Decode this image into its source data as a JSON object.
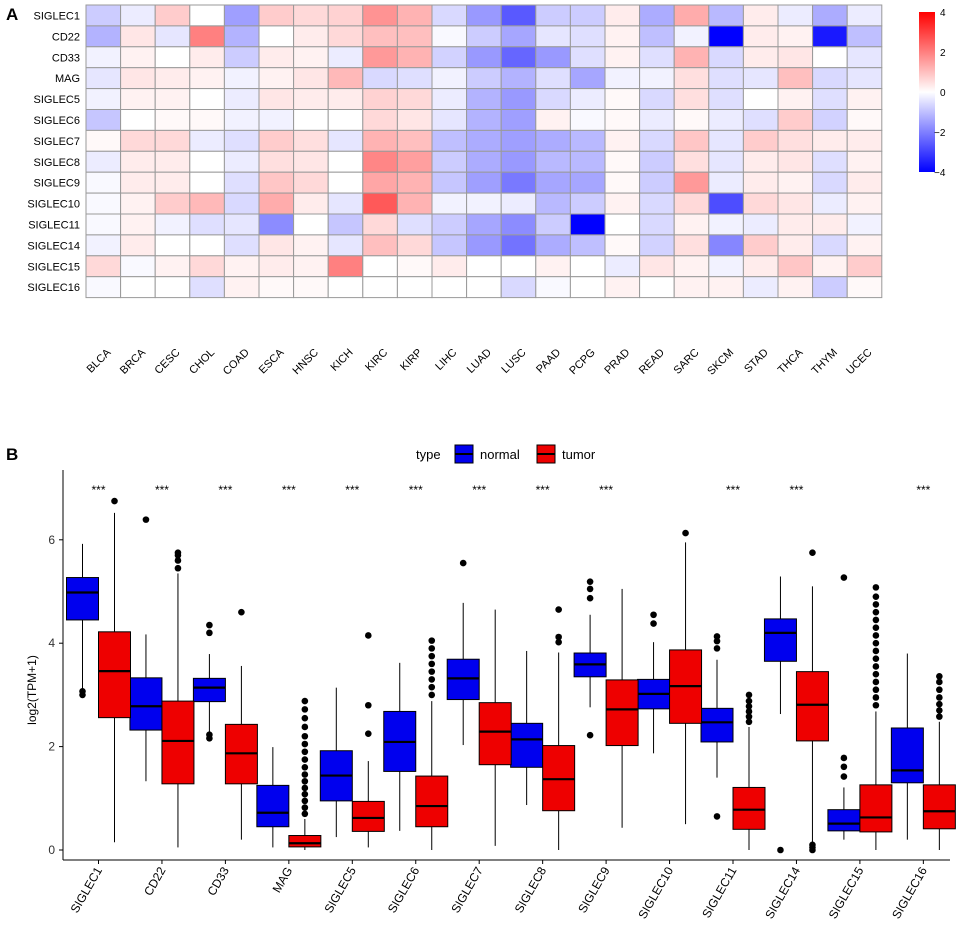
{
  "panel_a": {
    "label": "A",
    "legend": {
      "ticks": [
        "4",
        "2",
        "0",
        "−2",
        "−4"
      ],
      "colors": {
        "low": "#0000ff",
        "mid": "#ffffff",
        "high": "#ff0000"
      }
    },
    "chart_data": {
      "type": "heatmap",
      "rows": [
        "SIGLEC1",
        "CD22",
        "CD33",
        "MAG",
        "SIGLEC5",
        "SIGLEC6",
        "SIGLEC7",
        "SIGLEC8",
        "SIGLEC9",
        "SIGLEC10",
        "SIGLEC11",
        "SIGLEC14",
        "SIGLEC15",
        "SIGLEC16"
      ],
      "columns": [
        "BLCA",
        "BRCA",
        "CESC",
        "CHOL",
        "COAD",
        "ESCA",
        "HNSC",
        "KICH",
        "KIRC",
        "KIRP",
        "LIHC",
        "LUAD",
        "LUSC",
        "PAAD",
        "PCPG",
        "PRAD",
        "READ",
        "SARC",
        "SKCM",
        "STAD",
        "THCA",
        "THYM",
        "UCEC"
      ],
      "values": [
        [
          -0.8,
          -0.3,
          0.8,
          0.0,
          -1.5,
          0.8,
          0.6,
          0.7,
          1.7,
          1.2,
          -0.6,
          -1.6,
          -2.6,
          -0.8,
          -0.8,
          0.3,
          -1.3,
          1.3,
          -1.1,
          0.3,
          -0.3,
          -1.3,
          -0.3
        ],
        [
          -1.2,
          0.4,
          -0.4,
          2.0,
          -1.2,
          0.0,
          0.3,
          0.6,
          1.0,
          1.0,
          -0.1,
          -0.8,
          -1.4,
          -0.4,
          -0.5,
          0.2,
          -1.0,
          -0.2,
          -4.0,
          0.3,
          0.2,
          -3.6,
          -1.0
        ],
        [
          -0.2,
          0.2,
          0.0,
          0.3,
          -0.8,
          0.3,
          0.2,
          -0.3,
          1.6,
          1.2,
          -0.7,
          -1.6,
          -2.4,
          -1.6,
          -0.5,
          0.2,
          -0.5,
          1.2,
          -0.6,
          0.3,
          0.4,
          0.0,
          -0.4
        ],
        [
          -0.4,
          0.4,
          0.3,
          0.2,
          -0.2,
          0.2,
          0.4,
          1.1,
          -0.6,
          -0.5,
          -0.2,
          -0.8,
          -1.2,
          -0.5,
          -1.4,
          -0.2,
          -0.2,
          0.5,
          -0.5,
          -0.4,
          1.0,
          -0.6,
          -0.4
        ],
        [
          -0.2,
          0.2,
          0.2,
          0.0,
          -0.3,
          0.4,
          0.3,
          0.3,
          0.7,
          0.6,
          -0.3,
          -1.2,
          -1.6,
          -0.6,
          -0.3,
          0.1,
          -0.6,
          0.5,
          -0.5,
          0.0,
          0.2,
          -0.5,
          0.2
        ],
        [
          -0.9,
          0.0,
          0.1,
          0.1,
          -0.2,
          -0.2,
          0.0,
          0.0,
          0.6,
          0.4,
          -0.4,
          -1.2,
          -1.5,
          0.2,
          -0.1,
          0.1,
          -0.3,
          0.1,
          -0.3,
          -0.5,
          0.8,
          -0.7,
          0.1
        ],
        [
          0.1,
          0.6,
          0.6,
          -0.3,
          -0.5,
          0.8,
          0.5,
          -0.4,
          1.2,
          1.0,
          -1.0,
          -1.3,
          -1.5,
          -1.3,
          -1.1,
          0.2,
          -0.6,
          0.9,
          -0.4,
          0.8,
          0.5,
          0.3,
          0.3
        ],
        [
          -0.3,
          0.3,
          0.3,
          0.0,
          -0.3,
          0.5,
          0.4,
          0.0,
          1.9,
          1.5,
          -0.8,
          -1.3,
          -1.6,
          -1.1,
          -1.1,
          0.1,
          -0.8,
          0.5,
          -0.4,
          0.3,
          0.4,
          -0.5,
          0.2
        ],
        [
          -0.1,
          0.3,
          0.3,
          0.0,
          -0.5,
          0.9,
          0.6,
          0.0,
          1.4,
          1.2,
          -0.9,
          -1.5,
          -2.1,
          -1.4,
          -1.4,
          0.1,
          -0.8,
          1.6,
          -0.3,
          0.3,
          0.2,
          -0.6,
          0.3
        ],
        [
          -0.1,
          0.2,
          0.8,
          1.1,
          -0.6,
          1.3,
          0.3,
          -0.4,
          2.6,
          1.2,
          -0.2,
          -0.2,
          -0.3,
          -1.1,
          -0.8,
          0.2,
          -0.6,
          0.6,
          -2.8,
          0.6,
          0.4,
          -0.3,
          0.2
        ],
        [
          -0.1,
          0.2,
          -0.2,
          -0.5,
          -0.4,
          -1.8,
          0.0,
          -0.9,
          0.6,
          -0.5,
          -0.8,
          -1.4,
          -1.8,
          -0.8,
          -4.0,
          0.0,
          -0.6,
          0.2,
          -0.2,
          -0.3,
          0.3,
          0.3,
          -0.2
        ],
        [
          -0.2,
          0.3,
          0.0,
          0.0,
          -0.5,
          0.4,
          0.2,
          -0.4,
          1.0,
          0.6,
          -0.9,
          -1.6,
          -2.2,
          -1.3,
          -1.0,
          0.1,
          -0.7,
          0.5,
          -1.9,
          0.8,
          0.3,
          -0.6,
          0.2
        ],
        [
          0.6,
          -0.1,
          0.2,
          0.6,
          0.2,
          0.3,
          0.2,
          2.0,
          0.0,
          0.1,
          0.3,
          0.0,
          0.0,
          0.2,
          0.0,
          -0.3,
          0.4,
          0.2,
          -0.2,
          0.3,
          0.9,
          0.2,
          0.8
        ],
        [
          -0.1,
          0.0,
          0.0,
          -0.5,
          0.2,
          0.1,
          0.1,
          0.0,
          0.0,
          0.0,
          0.0,
          0.0,
          -0.6,
          -0.1,
          0.0,
          0.2,
          0.0,
          0.2,
          0.2,
          -0.3,
          0.2,
          -0.8,
          0.1
        ]
      ],
      "scale_range": [
        -4,
        4
      ]
    }
  },
  "panel_b": {
    "label": "B",
    "legend": {
      "title": "type",
      "items": [
        {
          "name": "normal",
          "color": "#0000ee"
        },
        {
          "name": "tumor",
          "color": "#ee0000"
        }
      ]
    },
    "chart_data": {
      "type": "boxplot",
      "ylabel": "log2(TPM+1)",
      "ylim": [
        -0.2,
        7.2
      ],
      "yticks": [
        "0",
        "2",
        "4",
        "6"
      ],
      "categories": [
        "SIGLEC1",
        "CD22",
        "CD33",
        "MAG",
        "SIGLEC5",
        "SIGLEC6",
        "SIGLEC7",
        "SIGLEC8",
        "SIGLEC9",
        "SIGLEC10",
        "SIGLEC11",
        "SIGLEC14",
        "SIGLEC15",
        "SIGLEC16"
      ],
      "significance": [
        "***",
        "***",
        "***",
        "***",
        "***",
        "***",
        "***",
        "***",
        "***",
        "",
        "***",
        "***",
        "",
        "***"
      ],
      "series": [
        {
          "name": "normal",
          "boxes": [
            {
              "min": 3.1,
              "q1": 4.45,
              "median": 4.98,
              "q3": 5.27,
              "max": 5.92,
              "outliers": [
                3.0,
                3.07
              ]
            },
            {
              "min": 1.33,
              "q1": 2.32,
              "median": 2.78,
              "q3": 3.33,
              "max": 4.17,
              "outliers": [
                6.39
              ]
            },
            {
              "min": 2.28,
              "q1": 2.87,
              "median": 3.14,
              "q3": 3.32,
              "max": 3.79,
              "outliers": [
                2.16,
                2.23,
                4.2,
                4.35
              ]
            },
            {
              "min": 0.05,
              "q1": 0.45,
              "median": 0.72,
              "q3": 1.25,
              "max": 1.99,
              "outliers": []
            },
            {
              "min": 0.25,
              "q1": 0.95,
              "median": 1.44,
              "q3": 1.92,
              "max": 3.14,
              "outliers": []
            },
            {
              "min": 0.37,
              "q1": 1.52,
              "median": 2.09,
              "q3": 2.68,
              "max": 3.62,
              "outliers": []
            },
            {
              "min": 2.03,
              "q1": 2.91,
              "median": 3.32,
              "q3": 3.69,
              "max": 4.78,
              "outliers": [
                5.55
              ]
            },
            {
              "min": 0.87,
              "q1": 1.6,
              "median": 2.14,
              "q3": 2.45,
              "max": 3.85,
              "outliers": []
            },
            {
              "min": 2.76,
              "q1": 3.35,
              "median": 3.59,
              "q3": 3.81,
              "max": 4.55,
              "outliers": [
                2.22,
                4.87,
                5.05,
                5.19
              ]
            },
            {
              "min": 1.87,
              "q1": 2.73,
              "median": 3.02,
              "q3": 3.3,
              "max": 4.02,
              "outliers": [
                4.38,
                4.55
              ]
            },
            {
              "min": 1.4,
              "q1": 2.09,
              "median": 2.47,
              "q3": 2.74,
              "max": 3.68,
              "outliers": [
                0.65,
                3.9,
                4.04,
                4.13
              ]
            },
            {
              "min": 2.63,
              "q1": 3.65,
              "median": 4.2,
              "q3": 4.47,
              "max": 5.29,
              "outliers": [
                0.0
              ]
            },
            {
              "min": 0.2,
              "q1": 0.37,
              "median": 0.51,
              "q3": 0.78,
              "max": 1.21,
              "outliers": [
                1.42,
                1.61,
                1.78,
                5.27
              ]
            },
            {
              "min": 0.2,
              "q1": 1.3,
              "median": 1.54,
              "q3": 2.36,
              "max": 3.8,
              "outliers": []
            }
          ]
        },
        {
          "name": "tumor",
          "boxes": [
            {
              "min": 0.15,
              "q1": 2.56,
              "median": 3.46,
              "q3": 4.22,
              "max": 6.52,
              "outliers": [
                6.75
              ]
            },
            {
              "min": 0.05,
              "q1": 1.28,
              "median": 2.11,
              "q3": 2.88,
              "max": 5.35,
              "outliers": [
                5.45,
                5.6,
                5.7,
                5.75
              ]
            },
            {
              "min": 0.2,
              "q1": 1.28,
              "median": 1.87,
              "q3": 2.43,
              "max": 3.56,
              "outliers": [
                4.6
              ]
            },
            {
              "min": 0.0,
              "q1": 0.06,
              "median": 0.13,
              "q3": 0.28,
              "max": 0.6,
              "outliers": [
                0.7,
                0.82,
                0.95,
                1.08,
                1.2,
                1.33,
                1.46,
                1.6,
                1.75,
                1.9,
                2.05,
                2.2,
                2.38,
                2.55,
                2.72,
                2.88
              ]
            },
            {
              "min": 0.05,
              "q1": 0.36,
              "median": 0.62,
              "q3": 0.94,
              "max": 1.72,
              "outliers": [
                2.25,
                2.8,
                4.15
              ]
            },
            {
              "min": 0.0,
              "q1": 0.45,
              "median": 0.85,
              "q3": 1.43,
              "max": 2.88,
              "outliers": [
                3.0,
                3.15,
                3.3,
                3.45,
                3.6,
                3.75,
                3.9,
                4.05
              ]
            },
            {
              "min": 0.08,
              "q1": 1.65,
              "median": 2.29,
              "q3": 2.85,
              "max": 4.65,
              "outliers": []
            },
            {
              "min": 0.0,
              "q1": 0.76,
              "median": 1.37,
              "q3": 2.02,
              "max": 3.82,
              "outliers": [
                4.02,
                4.12,
                4.65
              ]
            },
            {
              "min": 0.43,
              "q1": 2.02,
              "median": 2.72,
              "q3": 3.29,
              "max": 5.05,
              "outliers": []
            },
            {
              "min": 0.5,
              "q1": 2.45,
              "median": 3.17,
              "q3": 3.87,
              "max": 5.95,
              "outliers": [
                6.13
              ]
            },
            {
              "min": 0.0,
              "q1": 0.4,
              "median": 0.78,
              "q3": 1.21,
              "max": 2.38,
              "outliers": [
                2.48,
                2.58,
                2.68,
                2.78,
                2.88,
                3.0
              ]
            },
            {
              "min": 0.12,
              "q1": 2.11,
              "median": 2.81,
              "q3": 3.45,
              "max": 5.1,
              "outliers": [
                0.0,
                0.05,
                0.1,
                5.75
              ]
            },
            {
              "min": 0.0,
              "q1": 0.35,
              "median": 0.63,
              "q3": 1.26,
              "max": 2.68,
              "outliers": [
                2.8,
                2.95,
                3.1,
                3.25,
                3.4,
                3.55,
                3.7,
                3.85,
                4.0,
                4.15,
                4.3,
                4.45,
                4.6,
                4.75,
                4.9,
                5.08
              ]
            },
            {
              "min": 0.0,
              "q1": 0.41,
              "median": 0.75,
              "q3": 1.26,
              "max": 2.48,
              "outliers": [
                2.58,
                2.7,
                2.82,
                2.95,
                3.1,
                3.25,
                3.36
              ]
            }
          ]
        }
      ]
    }
  }
}
